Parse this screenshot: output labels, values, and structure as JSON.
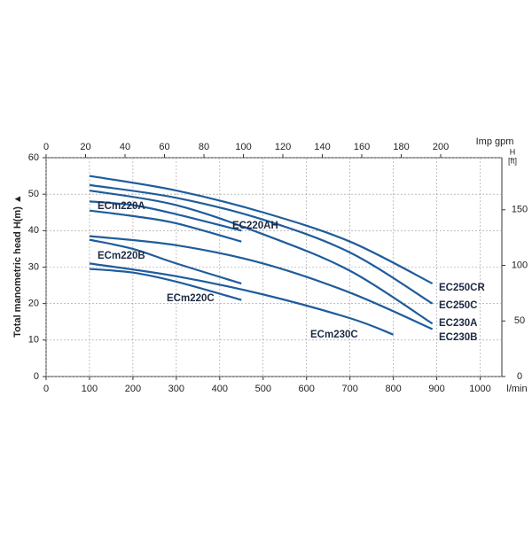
{
  "chart_data": {
    "type": "line",
    "color": "#1f5c9c",
    "grid": true,
    "xlabel": "l/min",
    "ylabel": "Total manometric head H(m) ▲",
    "x2label": "Imp gpm",
    "y2label": "H",
    "y2unit": "[ft]",
    "xlim": [
      0,
      1050
    ],
    "xticks": [
      0,
      100,
      200,
      300,
      400,
      500,
      600,
      700,
      800,
      900,
      1000
    ],
    "ylim": [
      0,
      60
    ],
    "yticks": [
      0,
      10,
      20,
      30,
      40,
      50,
      60
    ],
    "x2lim": [
      0,
      231
    ],
    "x2ticks": [
      0,
      20,
      40,
      60,
      80,
      100,
      120,
      140,
      160,
      180,
      200
    ],
    "y2lim": [
      0,
      196.85
    ],
    "y2ticks": [
      0,
      50,
      100,
      150
    ],
    "series": [
      {
        "name": "EC250CR",
        "x": [
          100,
          300,
          500,
          700,
          890
        ],
        "values": [
          55,
          51,
          45,
          37,
          25.5
        ]
      },
      {
        "name": "EC250C",
        "x": [
          100,
          300,
          500,
          700,
          890
        ],
        "values": [
          52.5,
          49,
          43,
          34,
          20
        ]
      },
      {
        "name": "EC230A",
        "x": [
          100,
          300,
          500,
          700,
          890
        ],
        "values": [
          51,
          47,
          39,
          29,
          14.5
        ]
      },
      {
        "name": "EC230B",
        "x": [
          100,
          300,
          500,
          700,
          890
        ],
        "values": [
          38.5,
          36,
          31,
          23,
          13
        ]
      },
      {
        "name": "ECm220A",
        "x": [
          100,
          200,
          300,
          450
        ],
        "values": [
          48,
          47,
          44.5,
          40
        ]
      },
      {
        "name": "EC220AH",
        "x": [
          100,
          200,
          300,
          450
        ],
        "values": [
          45.5,
          44,
          42,
          37
        ]
      },
      {
        "name": "ECm220B",
        "x": [
          100,
          200,
          300,
          450
        ],
        "values": [
          37.5,
          35,
          31,
          25.5
        ]
      },
      {
        "name": "ECm220C",
        "x": [
          100,
          200,
          300,
          450
        ],
        "values": [
          29.5,
          28.5,
          26,
          21
        ]
      },
      {
        "name": "ECm230C",
        "x": [
          100,
          300,
          500,
          700,
          800
        ],
        "values": [
          31,
          27.5,
          22.5,
          16,
          11.5
        ]
      }
    ]
  }
}
